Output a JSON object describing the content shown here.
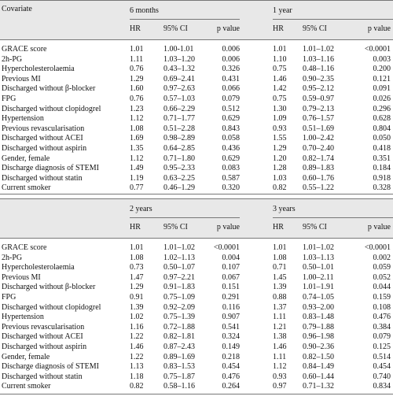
{
  "header": {
    "covariate": "Covariate",
    "subheaders": [
      "HR",
      "95% CI",
      "p value"
    ]
  },
  "blocks": [
    {
      "periods": [
        "6 months",
        "1 year"
      ],
      "rows": [
        {
          "covariate": "GRACE score",
          "values": [
            "1.01",
            "1.00-1.01",
            "0.006",
            "1.01",
            "1.01–1.02",
            "<0.0001"
          ]
        },
        {
          "covariate": "2h-PG",
          "values": [
            "1.11",
            "1.03–1.20",
            "0.006",
            "1.10",
            "1.03–1.16",
            "0.003"
          ]
        },
        {
          "covariate": "Hypercholesterolaemia",
          "values": [
            "0.76",
            "0.43–1.32",
            "0.326",
            "0.75",
            "0.48–1.16",
            "0.200"
          ]
        },
        {
          "covariate": "Previous MI",
          "values": [
            "1.29",
            "0.69–2.41",
            "0.431",
            "1.46",
            "0.90–2.35",
            "0.121"
          ]
        },
        {
          "covariate": "Discharged without β-blocker",
          "values": [
            "1.60",
            "0.97–2.63",
            "0.066",
            "1.42",
            "0.95–2.12",
            "0.091"
          ]
        },
        {
          "covariate": "FPG",
          "values": [
            "0.76",
            "0.57–1.03",
            "0.079",
            "0.75",
            "0.59–0.97",
            "0.026"
          ]
        },
        {
          "covariate": "Discharged without clopidogrel",
          "values": [
            "1.23",
            "0.66–2.29",
            "0.512",
            "1.30",
            "0.79–2.13",
            "0.296"
          ]
        },
        {
          "covariate": "Hypertension",
          "values": [
            "1.12",
            "0.71–1.77",
            "0.629",
            "1.09",
            "0.76–1.57",
            "0.628"
          ]
        },
        {
          "covariate": "Previous revascularisation",
          "values": [
            "1.08",
            "0.51–2.28",
            "0.843",
            "0.93",
            "0.51–1.69",
            "0.804"
          ]
        },
        {
          "covariate": "Discharged without ACEI",
          "values": [
            "1.69",
            "0.98–2.89",
            "0.058",
            "1.55",
            "1.00–2.42",
            "0.050"
          ]
        },
        {
          "covariate": "Discharged without aspirin",
          "values": [
            "1.35",
            "0.64–2.85",
            "0.436",
            "1.29",
            "0.70–2.40",
            "0.418"
          ]
        },
        {
          "covariate": "Gender, female",
          "values": [
            "1.12",
            "0.71–1.80",
            "0.629",
            "1.20",
            "0.82–1.74",
            "0.351"
          ]
        },
        {
          "covariate": "Discharge diagnosis of STEMI",
          "values": [
            "1.49",
            "0.95–2.33",
            "0.083",
            "1.28",
            "0.89–1.83",
            "0.184"
          ]
        },
        {
          "covariate": "Discharged without statin",
          "values": [
            "1.19",
            "0.63–2.25",
            "0.587",
            "1.03",
            "0.60–1.76",
            "0.918"
          ]
        },
        {
          "covariate": "Current smoker",
          "values": [
            "0.77",
            "0.46–1.29",
            "0.320",
            "0.82",
            "0.55–1.22",
            "0.328"
          ]
        }
      ]
    },
    {
      "periods": [
        "2 years",
        "3 years"
      ],
      "rows": [
        {
          "covariate": "GRACE score",
          "values": [
            "1.01",
            "1.01–1.02",
            "<0.0001",
            "1.01",
            "1.01–1.02",
            "<0.0001"
          ]
        },
        {
          "covariate": "2h-PG",
          "values": [
            "1.08",
            "1.02–1.13",
            "0.004",
            "1.08",
            "1.03–1.13",
            "0.002"
          ]
        },
        {
          "covariate": "Hypercholesterolaemia",
          "values": [
            "0.73",
            "0.50–1.07",
            "0.107",
            "0.71",
            "0.50–1.01",
            "0.059"
          ]
        },
        {
          "covariate": "Previous MI",
          "values": [
            "1.47",
            "0.97–2.21",
            "0.067",
            "1.45",
            "1.00–2.11",
            "0.052"
          ]
        },
        {
          "covariate": "Discharged without β-blocker",
          "values": [
            "1.29",
            "0.91–1.83",
            "0.151",
            "1.39",
            "1.01–1.91",
            "0.044"
          ]
        },
        {
          "covariate": "FPG",
          "values": [
            "0.91",
            "0.75–1.09",
            "0.291",
            "0.88",
            "0.74–1.05",
            "0.159"
          ]
        },
        {
          "covariate": "Discharged without clopidogrel",
          "values": [
            "1.39",
            "0.92–2.09",
            "0.116",
            "1.37",
            "0.93–2.00",
            "0.108"
          ]
        },
        {
          "covariate": "Hypertension",
          "values": [
            "1.02",
            "0.75–1.39",
            "0.907",
            "1.11",
            "0.83–1.48",
            "0.476"
          ]
        },
        {
          "covariate": "Previous revascularisation",
          "values": [
            "1.16",
            "0.72–1.88",
            "0.541",
            "1.21",
            "0.79–1.88",
            "0.384"
          ]
        },
        {
          "covariate": "Discharged without ACEI",
          "values": [
            "1.22",
            "0.82–1.81",
            "0.324",
            "1.38",
            "0.96–1.98",
            "0.079"
          ]
        },
        {
          "covariate": "Discharged without aspirin",
          "values": [
            "1.46",
            "0.87–2.43",
            "0.149",
            "1.46",
            "0.90–2.36",
            "0.125"
          ]
        },
        {
          "covariate": "Gender, female",
          "values": [
            "1.22",
            "0.89–1.69",
            "0.218",
            "1.11",
            "0.82–1.50",
            "0.514"
          ]
        },
        {
          "covariate": "Discharge diagnosis of STEMI",
          "values": [
            "1.13",
            "0.83–1.53",
            "0.454",
            "1.12",
            "0.84–1.49",
            "0.454"
          ]
        },
        {
          "covariate": "Discharged without statin",
          "values": [
            "1.18",
            "0.75–1.87",
            "0.476",
            "0.93",
            "0.60–1.44",
            "0.740"
          ]
        },
        {
          "covariate": "Current smoker",
          "values": [
            "0.82",
            "0.58–1.16",
            "0.264",
            "0.97",
            "0.71–1.32",
            "0.834"
          ]
        }
      ]
    }
  ]
}
